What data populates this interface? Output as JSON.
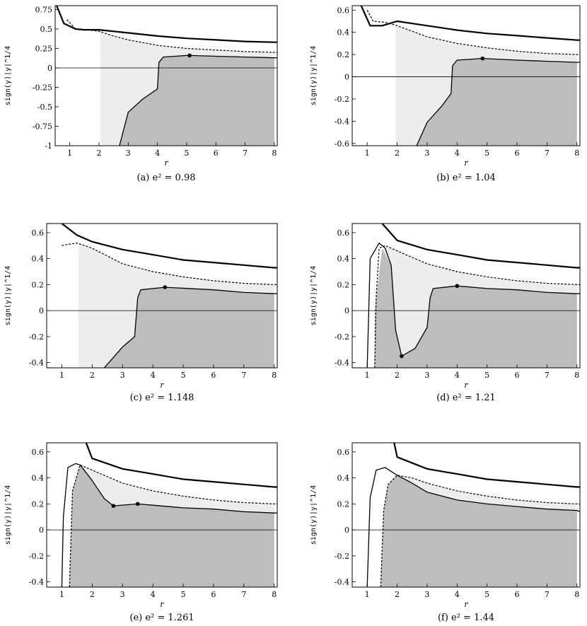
{
  "chart_data": [
    {
      "type": "line",
      "caption": "(a)  e² = 0.98",
      "xlabel": "r",
      "ylabel": "sign(y)|y|^1/4",
      "xlim": [
        0.5,
        8.1
      ],
      "ylim": [
        -1.0,
        0.8
      ],
      "xticks": [
        1,
        2,
        3,
        4,
        5,
        6,
        7,
        8
      ],
      "yticks": [
        -1,
        -0.75,
        -0.5,
        -0.25,
        0,
        0.25,
        0.5,
        0.75
      ],
      "ytick_labels": [
        "-1",
        "-0.75",
        "-0.5",
        "-0.25",
        "0",
        "0.25",
        "0.5",
        "0.75"
      ],
      "light_region": {
        "x": [
          2.05,
          2.5,
          3.0,
          4.0,
          5.0,
          6.0,
          7.0,
          8.0
        ],
        "upper": [
          0.47,
          0.41,
          0.36,
          0.29,
          0.25,
          0.23,
          0.21,
          0.2
        ]
      },
      "dark_region": {
        "x": [
          2.7,
          3.0,
          3.5,
          4.0,
          4.05,
          4.2,
          5.0,
          6.0,
          7.0,
          8.0
        ],
        "upper": [
          -1.0,
          -0.57,
          -0.4,
          -0.27,
          0.07,
          0.14,
          0.16,
          0.15,
          0.14,
          0.13
        ]
      },
      "series": [
        {
          "style": "thick",
          "x": [
            0.55,
            0.8,
            1.2,
            1.5,
            2.0,
            3.0,
            4.0,
            5.0,
            6.0,
            7.0,
            8.0,
            8.1
          ],
          "y": [
            0.8,
            0.57,
            0.5,
            0.49,
            0.49,
            0.45,
            0.41,
            0.38,
            0.36,
            0.34,
            0.33,
            0.33
          ]
        },
        {
          "style": "dashed",
          "x": [
            0.9,
            1.2,
            1.6,
            2.0,
            2.5,
            3.0,
            4.0,
            5.0,
            6.0,
            7.0,
            8.0,
            8.1
          ],
          "y": [
            0.62,
            0.5,
            0.49,
            0.47,
            0.41,
            0.36,
            0.29,
            0.25,
            0.23,
            0.21,
            0.2,
            0.2
          ]
        },
        {
          "style": "thin",
          "x": [
            2.7,
            3.0,
            3.5,
            4.0,
            4.05,
            4.2,
            5.0,
            5.1,
            6.0,
            7.0,
            8.0,
            8.1
          ],
          "y": [
            -1.0,
            -0.57,
            -0.4,
            -0.27,
            0.07,
            0.14,
            0.16,
            0.16,
            0.15,
            0.14,
            0.13,
            0.13
          ]
        }
      ],
      "points": [
        {
          "x": 5.1,
          "y": 0.16
        }
      ]
    },
    {
      "type": "line",
      "caption": "(b)  e² = 1.04",
      "xlabel": "r",
      "ylabel": "sign(y)|y|^1/4",
      "xlim": [
        0.5,
        8.1
      ],
      "ylim": [
        -0.62,
        0.64
      ],
      "xticks": [
        1,
        2,
        3,
        4,
        5,
        6,
        7,
        8
      ],
      "yticks": [
        -0.6,
        -0.4,
        -0.2,
        0,
        0.2,
        0.4,
        0.6
      ],
      "ytick_labels": [
        "-0.6",
        "-0.4",
        "-0.2",
        "0",
        "0.2",
        "0.4",
        "0.6"
      ],
      "light_region": {
        "x": [
          1.95,
          2.5,
          3.0,
          4.0,
          5.0,
          6.0,
          7.0,
          8.0
        ],
        "upper": [
          0.46,
          0.41,
          0.36,
          0.3,
          0.26,
          0.23,
          0.21,
          0.2
        ]
      },
      "dark_region": {
        "x": [
          2.65,
          3.0,
          3.5,
          3.8,
          3.85,
          4.0,
          4.85,
          6.0,
          7.0,
          8.0
        ],
        "upper": [
          -0.62,
          -0.41,
          -0.26,
          -0.15,
          0.1,
          0.15,
          0.165,
          0.15,
          0.14,
          0.13
        ]
      },
      "series": [
        {
          "style": "thick",
          "x": [
            0.8,
            1.1,
            1.5,
            2.0,
            3.0,
            4.0,
            5.0,
            6.0,
            7.0,
            8.0,
            8.1
          ],
          "y": [
            0.64,
            0.46,
            0.46,
            0.5,
            0.46,
            0.42,
            0.39,
            0.37,
            0.35,
            0.33,
            0.33
          ]
        },
        {
          "style": "dashed",
          "x": [
            1.0,
            1.2,
            1.6,
            2.0,
            2.5,
            3.0,
            4.0,
            5.0,
            6.0,
            7.0,
            8.0,
            8.1
          ],
          "y": [
            0.6,
            0.5,
            0.49,
            0.46,
            0.41,
            0.36,
            0.3,
            0.26,
            0.23,
            0.21,
            0.2,
            0.2
          ]
        },
        {
          "style": "thin",
          "x": [
            2.65,
            3.0,
            3.5,
            3.8,
            3.85,
            4.0,
            4.85,
            6.0,
            7.0,
            8.0,
            8.1
          ],
          "y": [
            -0.62,
            -0.41,
            -0.26,
            -0.15,
            0.1,
            0.15,
            0.165,
            0.15,
            0.14,
            0.13,
            0.13
          ]
        }
      ],
      "points": [
        {
          "x": 4.85,
          "y": 0.165
        }
      ]
    },
    {
      "type": "line",
      "caption": "(c)  e² = 1.148",
      "xlabel": "r",
      "ylabel": "sign(y)|y|^1/4",
      "xlim": [
        0.5,
        8.1
      ],
      "ylim": [
        -0.44,
        0.67
      ],
      "xticks": [
        1,
        2,
        3,
        4,
        5,
        6,
        7,
        8
      ],
      "yticks": [
        -0.4,
        -0.2,
        0,
        0.2,
        0.4,
        0.6
      ],
      "ytick_labels": [
        "-0.4",
        "-0.2",
        "0",
        "0.2",
        "0.4",
        "0.6"
      ],
      "light_region": {
        "x": [
          1.55,
          2.0,
          2.5,
          3.0,
          4.0,
          5.0,
          6.0,
          7.0,
          8.0
        ],
        "upper": [
          0.52,
          0.48,
          0.42,
          0.36,
          0.3,
          0.26,
          0.23,
          0.21,
          0.2
        ]
      },
      "dark_region": {
        "x": [
          2.4,
          3.0,
          3.4,
          3.5,
          3.6,
          4.4,
          6.0,
          7.0,
          8.0
        ],
        "upper": [
          -0.44,
          -0.28,
          -0.2,
          0.1,
          0.16,
          0.18,
          0.16,
          0.14,
          0.13
        ]
      },
      "series": [
        {
          "style": "thick",
          "x": [
            1.0,
            1.5,
            2.0,
            3.0,
            4.0,
            5.0,
            6.0,
            7.0,
            8.0,
            8.1
          ],
          "y": [
            0.67,
            0.58,
            0.53,
            0.47,
            0.43,
            0.39,
            0.37,
            0.35,
            0.33,
            0.33
          ]
        },
        {
          "style": "dashed",
          "x": [
            1.0,
            1.2,
            1.5,
            2.0,
            2.5,
            3.0,
            4.0,
            5.0,
            6.0,
            7.0,
            8.0,
            8.1
          ],
          "y": [
            0.5,
            0.51,
            0.52,
            0.48,
            0.42,
            0.36,
            0.3,
            0.26,
            0.23,
            0.21,
            0.2,
            0.2
          ]
        },
        {
          "style": "thin",
          "x": [
            2.4,
            3.0,
            3.4,
            3.5,
            3.6,
            4.4,
            6.0,
            7.0,
            8.0,
            8.1
          ],
          "y": [
            -0.44,
            -0.28,
            -0.2,
            0.1,
            0.16,
            0.18,
            0.16,
            0.14,
            0.13,
            0.13
          ]
        }
      ],
      "points": [
        {
          "x": 4.4,
          "y": 0.18
        }
      ]
    },
    {
      "type": "line",
      "caption": "(d)  e² = 1.21",
      "xlabel": "r",
      "ylabel": "sign(y)|y|^1/4",
      "xlim": [
        0.5,
        8.1
      ],
      "ylim": [
        -0.44,
        0.67
      ],
      "xticks": [
        1,
        2,
        3,
        4,
        5,
        6,
        7,
        8
      ],
      "yticks": [
        -0.4,
        -0.2,
        0,
        0.2,
        0.4,
        0.6
      ],
      "ytick_labels": [
        "-0.4",
        "-0.2",
        "0",
        "0.2",
        "0.4",
        "0.6"
      ],
      "light_region": {
        "x": [
          1.55,
          2.0,
          2.5,
          3.0,
          4.0,
          5.0,
          6.0,
          7.0,
          8.0
        ],
        "upper": [
          0.5,
          0.46,
          0.41,
          0.36,
          0.3,
          0.26,
          0.23,
          0.21,
          0.2
        ]
      },
      "dark_region": {
        "x": [
          1.25,
          1.5,
          1.8,
          1.95,
          2.15,
          2.6,
          3.0,
          3.1,
          3.2,
          4.0,
          5.0,
          6.0,
          7.0,
          8.0
        ],
        "upper": [
          0.0,
          0.48,
          0.35,
          -0.15,
          -0.35,
          -0.29,
          -0.13,
          0.1,
          0.17,
          0.19,
          0.17,
          0.16,
          0.14,
          0.13
        ]
      },
      "series": [
        {
          "style": "thick",
          "x": [
            1.5,
            2.0,
            3.0,
            4.0,
            5.0,
            6.0,
            7.0,
            8.0,
            8.1
          ],
          "y": [
            0.67,
            0.54,
            0.47,
            0.43,
            0.39,
            0.37,
            0.35,
            0.33,
            0.33
          ]
        },
        {
          "style": "dashed",
          "x": [
            1.25,
            1.3,
            1.4,
            1.6,
            2.0,
            2.5,
            3.0,
            4.0,
            5.0,
            6.0,
            7.0,
            8.0,
            8.1
          ],
          "y": [
            -0.44,
            0.1,
            0.48,
            0.5,
            0.46,
            0.41,
            0.36,
            0.3,
            0.26,
            0.23,
            0.21,
            0.2,
            0.2
          ]
        },
        {
          "style": "thin",
          "x": [
            1.0,
            1.1,
            1.4,
            1.6,
            1.8,
            1.95,
            2.15,
            2.6,
            3.0,
            3.1,
            3.2,
            4.0,
            5.0,
            6.0,
            7.0,
            8.0,
            8.1
          ],
          "y": [
            -0.44,
            0.4,
            0.52,
            0.48,
            0.35,
            -0.15,
            -0.35,
            -0.29,
            -0.13,
            0.1,
            0.17,
            0.19,
            0.17,
            0.16,
            0.14,
            0.13,
            0.13
          ]
        }
      ],
      "points": [
        {
          "x": 2.15,
          "y": -0.35
        },
        {
          "x": 4.0,
          "y": 0.19
        }
      ]
    },
    {
      "type": "line",
      "caption": "(e)  e² = 1.261",
      "xlabel": "r",
      "ylabel": "sign(y)|y|^1/4",
      "xlim": [
        0.5,
        8.1
      ],
      "ylim": [
        -0.44,
        0.67
      ],
      "xticks": [
        1,
        2,
        3,
        4,
        5,
        6,
        7,
        8
      ],
      "yticks": [
        -0.4,
        -0.2,
        0,
        0.2,
        0.4,
        0.6
      ],
      "ytick_labels": [
        "-0.4",
        "-0.2",
        "0",
        "0.2",
        "0.4",
        "0.6"
      ],
      "light_region": {
        "x": [
          1.6,
          2.0,
          2.5,
          3.0,
          4.0,
          5.0,
          6.0,
          7.0,
          8.0
        ],
        "upper": [
          0.5,
          0.46,
          0.41,
          0.36,
          0.3,
          0.26,
          0.23,
          0.21,
          0.2
        ]
      },
      "dark_region": {
        "x": [
          1.25,
          1.35,
          1.6,
          2.0,
          2.4,
          2.7,
          3.5,
          4.0,
          5.0,
          6.0,
          7.0,
          8.0
        ],
        "upper": [
          -0.44,
          0.3,
          0.5,
          0.38,
          0.24,
          0.185,
          0.2,
          0.19,
          0.17,
          0.16,
          0.14,
          0.13
        ]
      },
      "series": [
        {
          "style": "thick",
          "x": [
            1.8,
            2.0,
            3.0,
            4.0,
            5.0,
            6.0,
            7.0,
            8.0,
            8.1
          ],
          "y": [
            0.67,
            0.55,
            0.47,
            0.43,
            0.39,
            0.37,
            0.35,
            0.33,
            0.33
          ]
        },
        {
          "style": "dashed",
          "x": [
            1.25,
            1.35,
            1.6,
            2.0,
            2.5,
            3.0,
            4.0,
            5.0,
            6.0,
            7.0,
            8.0,
            8.1
          ],
          "y": [
            -0.44,
            0.3,
            0.5,
            0.46,
            0.41,
            0.36,
            0.3,
            0.26,
            0.23,
            0.21,
            0.2,
            0.2
          ]
        },
        {
          "style": "thin",
          "x": [
            1.0,
            1.05,
            1.2,
            1.45,
            1.6,
            2.0,
            2.4,
            2.7,
            3.5,
            4.0,
            5.0,
            6.0,
            7.0,
            8.0,
            8.1
          ],
          "y": [
            -0.44,
            0.1,
            0.48,
            0.51,
            0.5,
            0.38,
            0.24,
            0.185,
            0.2,
            0.19,
            0.17,
            0.16,
            0.14,
            0.13,
            0.13
          ]
        }
      ],
      "points": [
        {
          "x": 2.7,
          "y": 0.185
        },
        {
          "x": 3.5,
          "y": 0.2
        }
      ]
    },
    {
      "type": "line",
      "caption": "(f)  e² = 1.44",
      "xlabel": "r",
      "ylabel": "sign(y)|y|^1/4",
      "xlim": [
        0.5,
        8.1
      ],
      "ylim": [
        -0.44,
        0.67
      ],
      "xticks": [
        1,
        2,
        3,
        4,
        5,
        6,
        7,
        8
      ],
      "yticks": [
        -0.4,
        -0.2,
        0,
        0.2,
        0.4,
        0.6
      ],
      "ytick_labels": [
        "-0.4",
        "-0.2",
        "0",
        "0.2",
        "0.4",
        "0.6"
      ],
      "light_region": {
        "x": [
          2.05,
          2.5,
          3.0,
          4.0,
          5.0,
          6.0,
          7.0,
          8.0
        ],
        "upper": [
          0.42,
          0.4,
          0.36,
          0.3,
          0.26,
          0.23,
          0.21,
          0.2
        ]
      },
      "dark_region": {
        "x": [
          1.45,
          1.55,
          1.7,
          2.0,
          2.5,
          3.0,
          4.0,
          5.0,
          6.0,
          7.0,
          8.0
        ],
        "upper": [
          -0.44,
          0.15,
          0.35,
          0.42,
          0.36,
          0.29,
          0.23,
          0.2,
          0.18,
          0.16,
          0.15
        ]
      },
      "series": [
        {
          "style": "thick",
          "x": [
            1.9,
            2.0,
            3.0,
            4.0,
            5.0,
            6.0,
            7.0,
            8.0,
            8.1
          ],
          "y": [
            0.67,
            0.56,
            0.47,
            0.43,
            0.39,
            0.37,
            0.35,
            0.33,
            0.33
          ]
        },
        {
          "style": "dashed",
          "x": [
            1.45,
            1.55,
            1.7,
            2.0,
            2.5,
            3.0,
            4.0,
            5.0,
            6.0,
            7.0,
            8.0,
            8.1
          ],
          "y": [
            -0.44,
            0.15,
            0.35,
            0.42,
            0.4,
            0.36,
            0.3,
            0.26,
            0.23,
            0.21,
            0.2,
            0.2
          ]
        },
        {
          "style": "thin",
          "x": [
            1.0,
            1.1,
            1.3,
            1.6,
            2.0,
            2.5,
            3.0,
            4.0,
            5.0,
            6.0,
            7.0,
            8.0,
            8.1
          ],
          "y": [
            -0.44,
            0.25,
            0.46,
            0.48,
            0.42,
            0.36,
            0.29,
            0.23,
            0.2,
            0.18,
            0.16,
            0.15,
            0.14
          ]
        }
      ],
      "points": []
    }
  ]
}
